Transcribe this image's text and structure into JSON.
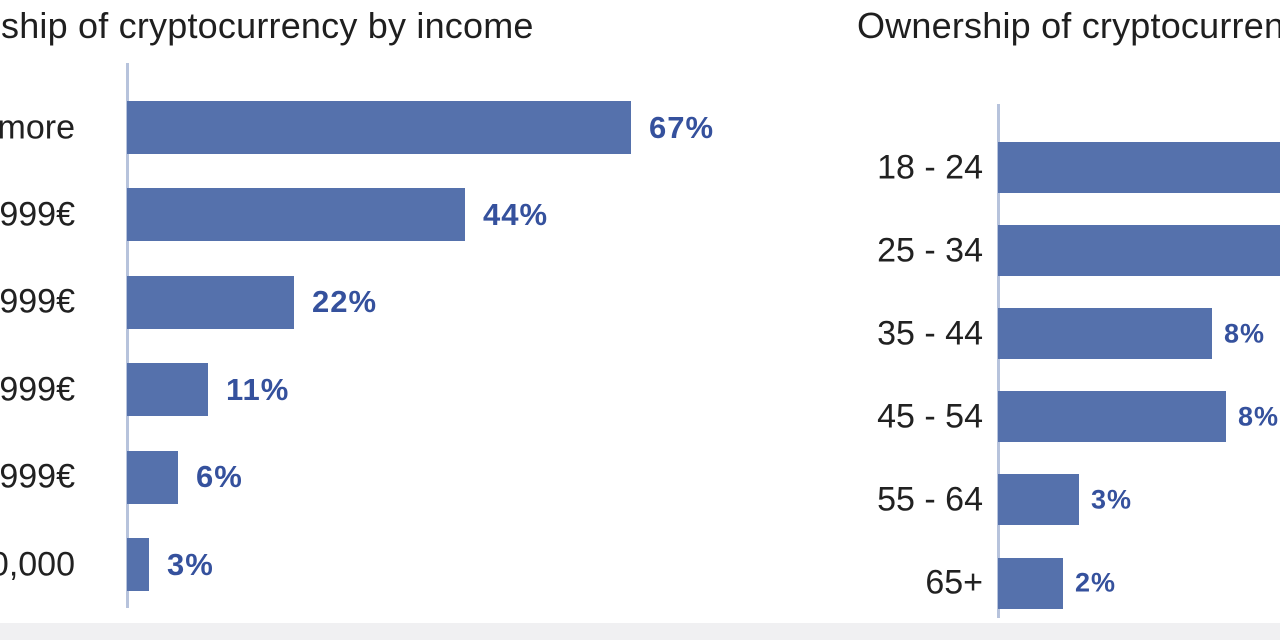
{
  "colors": {
    "bar_fill": "#5571ac",
    "value_text": "#35519d",
    "axis_line": "#b7c3dc",
    "label_text": "#212121",
    "background": "#ffffff"
  },
  "chart_data": [
    {
      "type": "bar",
      "orientation": "horizontal",
      "title": "ship of cryptocurrency by income",
      "title_note": "title clipped by left screen edge",
      "categories": [
        "more",
        "999€",
        "999€",
        "999€",
        "999€",
        "0,000"
      ],
      "categories_note": "income range labels clipped by left screen edge",
      "values": [
        67,
        44,
        22,
        11,
        6,
        3
      ],
      "value_labels": [
        "67%",
        "44%",
        "22%",
        "11%",
        "6%",
        "3%"
      ],
      "xlim": [
        0,
        70
      ],
      "grid": false,
      "legend": false
    },
    {
      "type": "bar",
      "orientation": "horizontal",
      "title": "Ownership of cryptocurren",
      "title_note": "title clipped by right screen edge",
      "categories": [
        "18 - 24",
        "25 - 34",
        "35 - 44",
        "45 - 54",
        "55 - 64",
        "65+"
      ],
      "values": [
        null,
        null,
        8,
        8,
        3,
        2
      ],
      "values_note": "bars for 18-24 and 25-34 run past the right screen edge; their values are not visible",
      "value_labels": [
        null,
        null,
        "8%",
        "8%",
        "3%",
        "2%"
      ],
      "grid": false,
      "legend": false
    }
  ]
}
